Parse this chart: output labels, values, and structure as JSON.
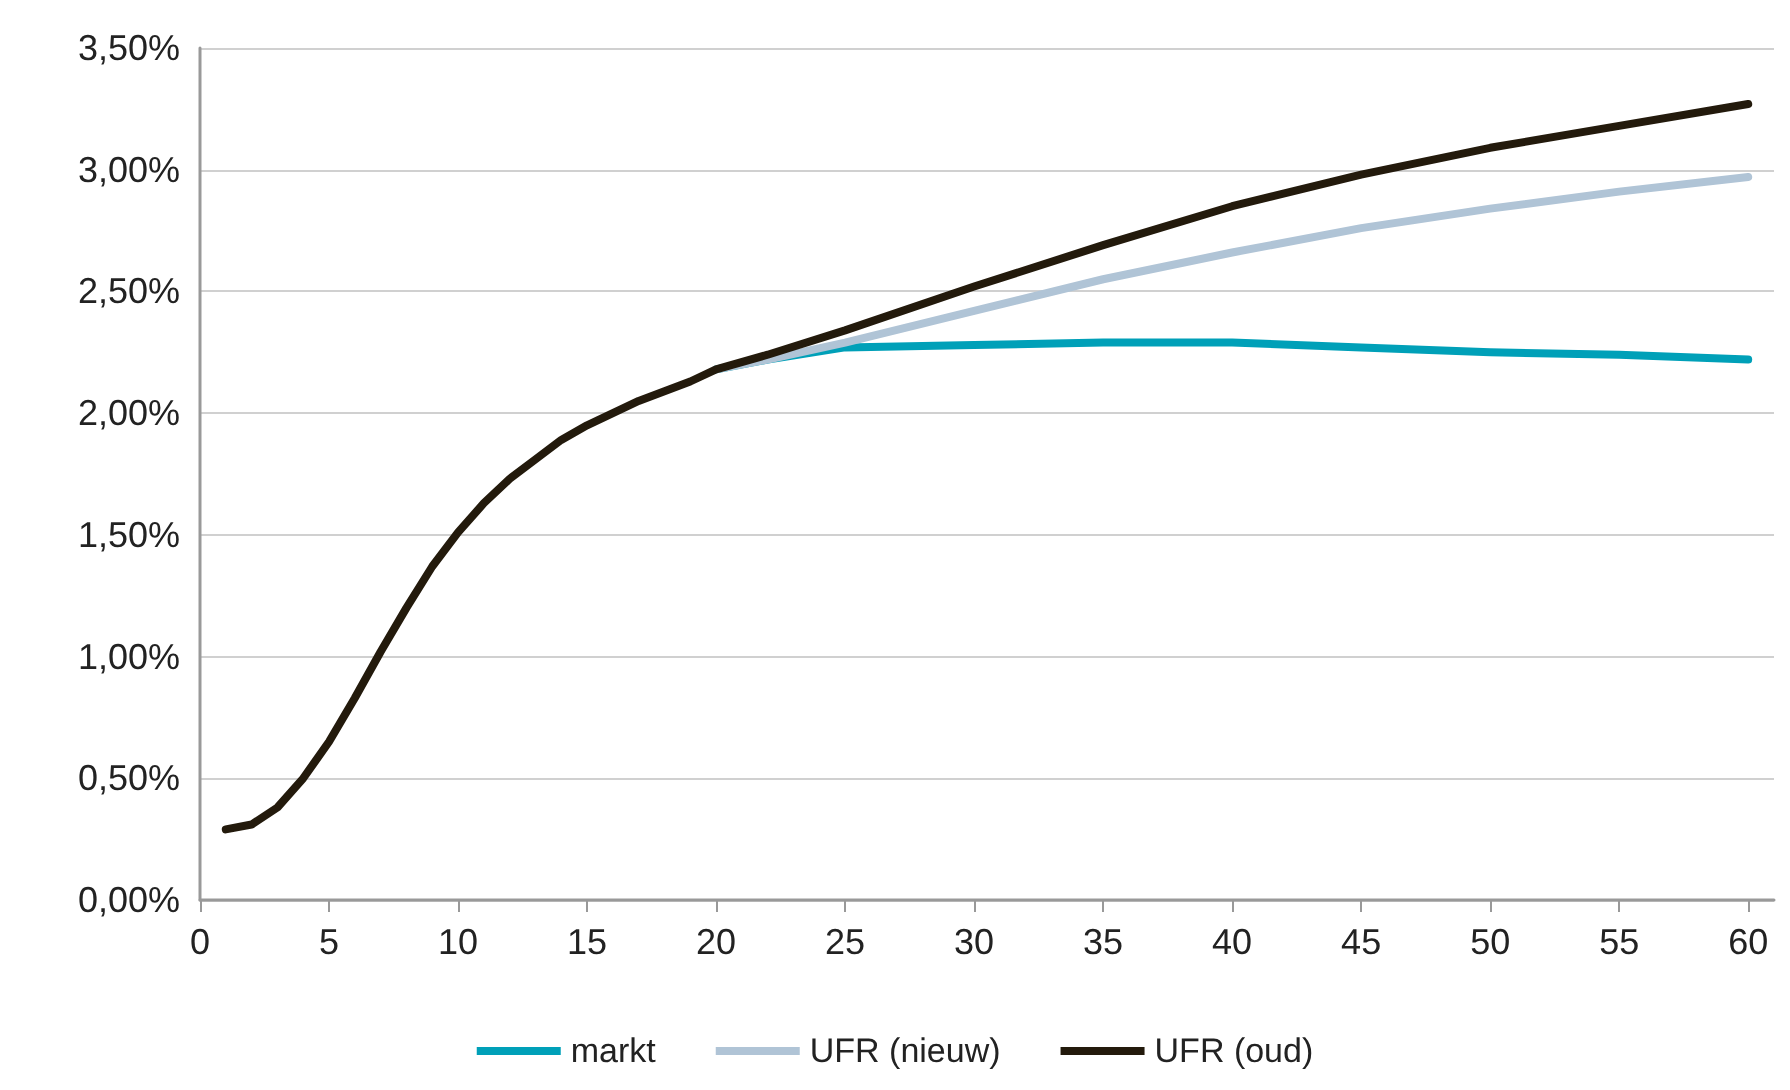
{
  "chart_data": {
    "type": "line",
    "x": [
      1,
      2,
      3,
      4,
      5,
      6,
      7,
      8,
      9,
      10,
      11,
      12,
      13,
      14,
      15,
      16,
      17,
      18,
      19,
      20,
      22,
      25,
      30,
      35,
      40,
      45,
      50,
      55,
      60
    ],
    "series": [
      {
        "name": "markt",
        "color": "#00a0b8",
        "values": [
          null,
          null,
          null,
          null,
          null,
          null,
          null,
          null,
          null,
          null,
          null,
          null,
          null,
          null,
          null,
          null,
          null,
          null,
          null,
          2.18,
          2.22,
          2.27,
          2.28,
          2.29,
          2.29,
          2.27,
          2.25,
          2.24,
          2.22
        ]
      },
      {
        "name": "UFR (nieuw)",
        "color": "#b0c4d6",
        "values": [
          null,
          null,
          null,
          null,
          null,
          null,
          null,
          null,
          null,
          null,
          null,
          null,
          null,
          null,
          null,
          null,
          null,
          null,
          null,
          2.18,
          2.22,
          2.29,
          2.42,
          2.55,
          2.66,
          2.76,
          2.84,
          2.91,
          2.97
        ]
      },
      {
        "name": "UFR (oud)",
        "color": "#231a0c",
        "values": [
          0.29,
          0.31,
          0.38,
          0.5,
          0.65,
          0.83,
          1.02,
          1.2,
          1.37,
          1.51,
          1.63,
          1.73,
          1.81,
          1.89,
          1.95,
          2.0,
          2.05,
          2.09,
          2.13,
          2.18,
          2.24,
          2.34,
          2.52,
          2.69,
          2.85,
          2.98,
          3.09,
          3.18,
          3.27
        ]
      }
    ],
    "xlim": [
      0,
      61
    ],
    "xticks": [
      0,
      5,
      10,
      15,
      20,
      25,
      30,
      35,
      40,
      45,
      50,
      55,
      60
    ],
    "ylim": [
      0,
      3.5
    ],
    "yticks": [
      {
        "value": 0,
        "label": "0,00%"
      },
      {
        "value": 0.5,
        "label": "0,50%"
      },
      {
        "value": 1,
        "label": "1,00%"
      },
      {
        "value": 1.5,
        "label": "1,50%"
      },
      {
        "value": 2,
        "label": "2,00%"
      },
      {
        "value": 2.5,
        "label": "2,50%"
      },
      {
        "value": 3,
        "label": "3,00%"
      },
      {
        "value": 3.5,
        "label": "3,50%"
      }
    ],
    "grid": "y",
    "legend": "bottom",
    "marker": "none",
    "line_style": "solid"
  }
}
